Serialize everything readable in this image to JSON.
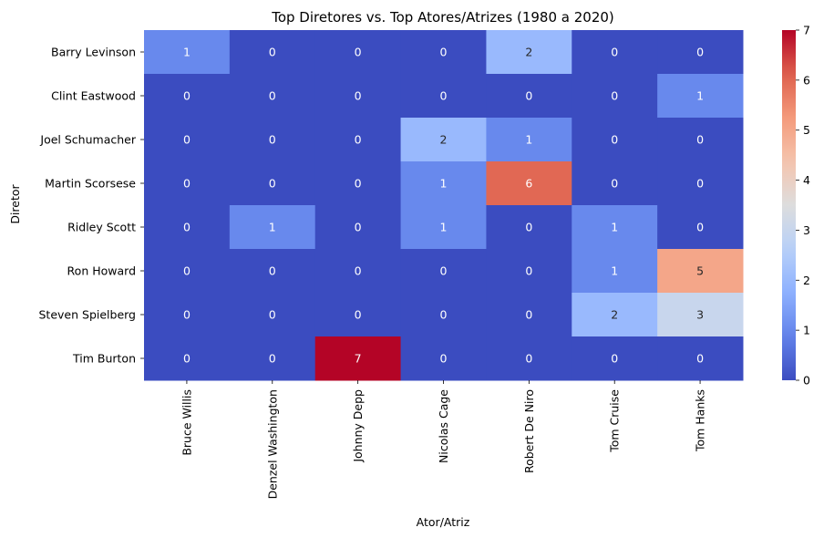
{
  "chart_data": {
    "type": "heatmap",
    "title": "Top Diretores vs. Top Atores/Atrizes (1980 a 2020)",
    "xlabel": "Ator/Atriz",
    "ylabel": "Diretor",
    "x_categories": [
      "Bruce Willis",
      "Denzel Washington",
      "Johnny Depp",
      "Nicolas Cage",
      "Robert De Niro",
      "Tom Cruise",
      "Tom Hanks"
    ],
    "y_categories": [
      "Barry Levinson",
      "Clint Eastwood",
      "Joel Schumacher",
      "Martin Scorsese",
      "Ridley Scott",
      "Ron Howard",
      "Steven Spielberg",
      "Tim Burton"
    ],
    "values": [
      [
        1,
        0,
        0,
        0,
        2,
        0,
        0
      ],
      [
        0,
        0,
        0,
        0,
        0,
        0,
        1
      ],
      [
        0,
        0,
        0,
        2,
        1,
        0,
        0
      ],
      [
        0,
        0,
        0,
        1,
        6,
        0,
        0
      ],
      [
        0,
        1,
        0,
        1,
        0,
        1,
        0
      ],
      [
        0,
        0,
        0,
        0,
        0,
        1,
        5
      ],
      [
        0,
        0,
        0,
        0,
        0,
        2,
        3
      ],
      [
        0,
        0,
        7,
        0,
        0,
        0,
        0
      ]
    ],
    "colormap": "coolwarm",
    "vmin": 0,
    "vmax": 7,
    "colorbar_ticks": [
      "0",
      "1",
      "2",
      "3",
      "4",
      "5",
      "6",
      "7"
    ],
    "annotated": true,
    "grid": false
  }
}
